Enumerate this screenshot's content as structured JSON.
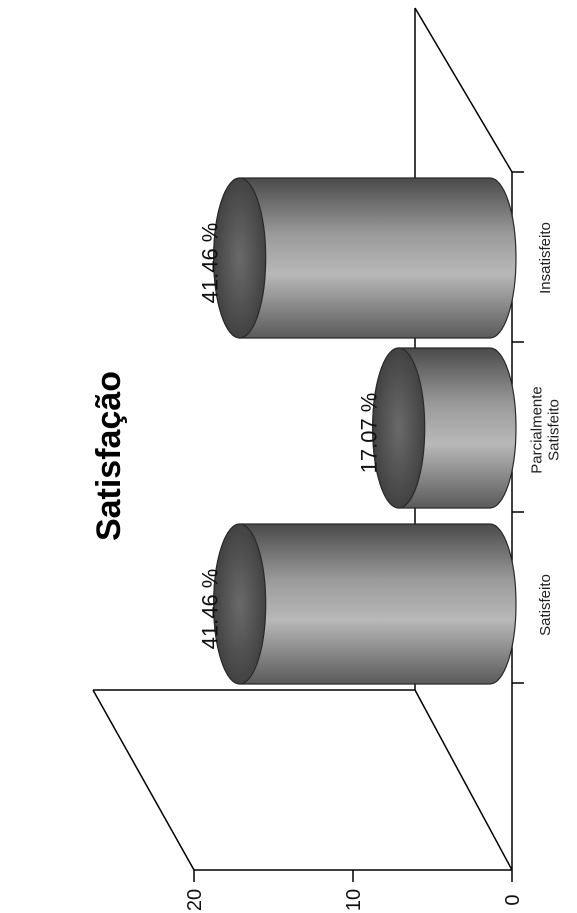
{
  "chart_data": {
    "type": "bar",
    "title": "Satisfação",
    "categories": [
      [
        "Satisfeito"
      ],
      [
        "Parcialmente",
        "Satisfeito"
      ],
      [
        "Insatisfeito"
      ]
    ],
    "values": [
      17,
      7,
      17
    ],
    "data_labels": [
      "41.46 %",
      "17.07 %",
      "41.46 %"
    ],
    "y_ticks": [
      "0",
      "10",
      "20"
    ],
    "ylim": [
      0,
      20
    ],
    "orientation": "rotated-90",
    "bar_shape": "3d-cylinder",
    "bar_color": "#7a7a7a",
    "grid": false,
    "legend": "none"
  }
}
